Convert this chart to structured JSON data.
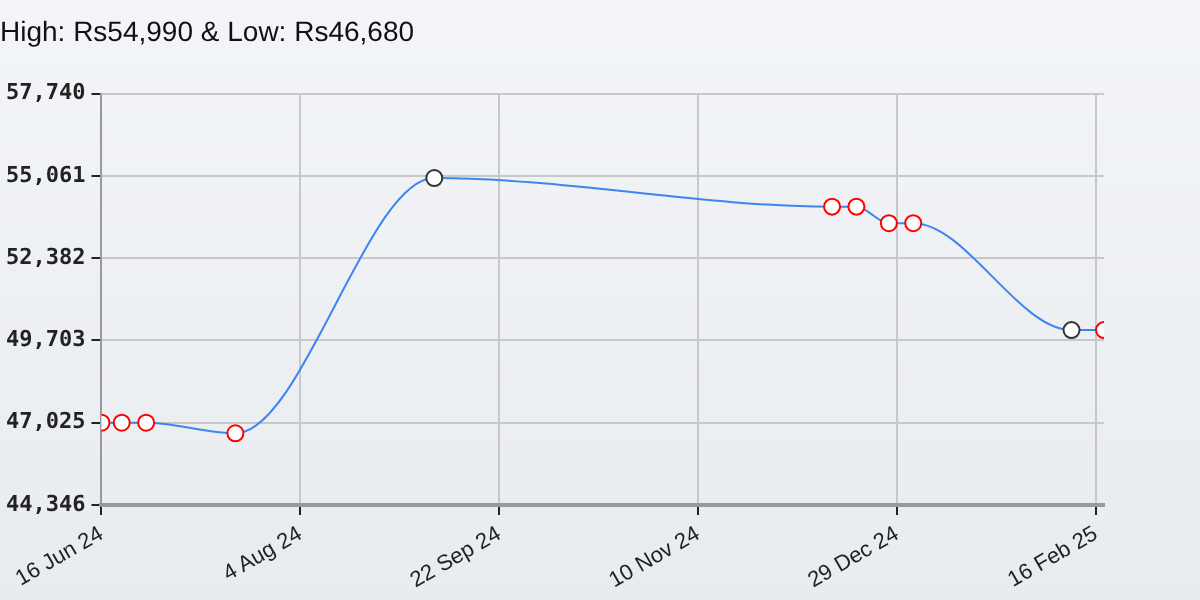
{
  "chart_data": {
    "type": "line",
    "title": "High: Rs54,990 & Low: Rs46,680",
    "x": [
      "2024-06-16",
      "2024-06-21",
      "2024-06-27",
      "2024-07-19",
      "2024-09-06",
      "2024-12-13",
      "2024-12-19",
      "2024-12-27",
      "2025-01-02",
      "2025-02-10",
      "2025-02-18"
    ],
    "series": [
      {
        "color": "#3d85f0",
        "values": [
          47025,
          47025,
          47025,
          46680,
          54990,
          54060,
          54060,
          53520,
          53520,
          50040,
          50040
        ],
        "colors": [
          "#ff0000",
          "#ff0000",
          "#ff0000",
          "#ff0000",
          "#333333",
          "#ff0000",
          "#ff0000",
          "#ff0000",
          "#ff0000",
          "#333333",
          "#ff0000"
        ]
      }
    ],
    "xlim": [
      "2024-06-16",
      "2025-02-18"
    ],
    "xticks": [
      {
        "value": "2024-06-16",
        "label": "16 Jun 24"
      },
      {
        "value": "2024-08-04",
        "label": "4 Aug 24"
      },
      {
        "value": "2024-09-22",
        "label": "22 Sep 24"
      },
      {
        "value": "2024-11-10",
        "label": "10 Nov 24"
      },
      {
        "value": "2024-12-29",
        "label": "29 Dec 24"
      },
      {
        "value": "2025-02-16",
        "label": "16 Feb 25"
      }
    ],
    "ylim": [
      44346,
      57740
    ],
    "yticks": [
      {
        "value": 44346,
        "label": "44,346"
      },
      {
        "value": 47025,
        "label": "47,025"
      },
      {
        "value": 49703,
        "label": "49,703"
      },
      {
        "value": 52382,
        "label": "52,382"
      },
      {
        "value": 55061,
        "label": "55,061"
      },
      {
        "value": 57740,
        "label": "57,740"
      }
    ],
    "grid": true,
    "marker": "circle",
    "line_style": "solid",
    "legend": false
  }
}
